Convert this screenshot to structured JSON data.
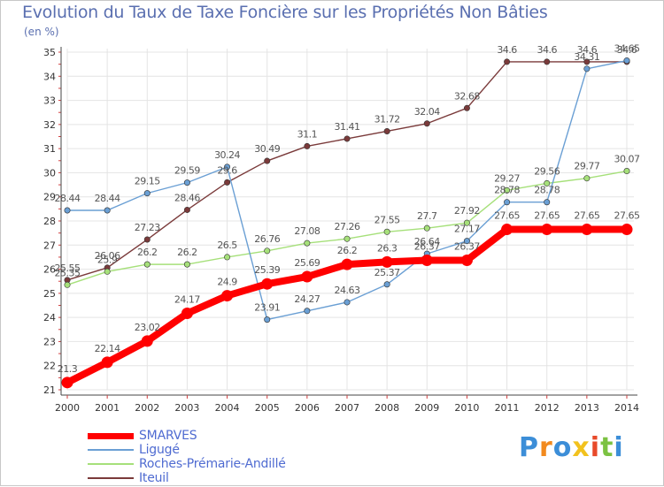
{
  "chart_data": {
    "type": "line",
    "title": "Evolution du Taux de Taxe Foncière sur les Propriétés Non Bâties",
    "ylabel": "(en %)",
    "xlabel": "",
    "ylim": [
      21,
      35
    ],
    "yticks": [
      21,
      22,
      23,
      24,
      25,
      26,
      27,
      28,
      29,
      30,
      31,
      32,
      33,
      34,
      35
    ],
    "categories": [
      "2000",
      "2001",
      "2002",
      "2003",
      "2004",
      "2005",
      "2006",
      "2007",
      "2008",
      "2009",
      "2010",
      "2011",
      "2012",
      "2013",
      "2014"
    ],
    "series": [
      {
        "name": "SMARVES",
        "color": "#ff0000",
        "values": [
          21.3,
          22.14,
          23.02,
          24.17,
          24.9,
          25.39,
          25.69,
          26.2,
          26.3,
          26.37,
          26.37,
          27.65,
          27.65,
          27.65,
          27.65
        ],
        "labels": [
          "21.3",
          "22.14",
          "23.02",
          "24.17",
          "24.9",
          "25.39",
          "25.69",
          "26.2",
          "26.3",
          "26.37",
          "26.37",
          "27.65",
          "27.65",
          "27.65",
          "27.65"
        ]
      },
      {
        "name": "Ligugé",
        "color": "#6a9fd4",
        "values": [
          28.44,
          28.44,
          29.15,
          29.59,
          30.24,
          23.91,
          24.27,
          24.63,
          25.37,
          26.64,
          27.17,
          28.78,
          28.78,
          34.31,
          34.65
        ],
        "labels": [
          "28.44",
          "28.44",
          "29.15",
          "29.59",
          "30.24",
          "23.91",
          "24.27",
          "24.63",
          "25.37",
          "26.64",
          "27.17",
          "28.78",
          "28.78",
          "34.31",
          "34.65"
        ]
      },
      {
        "name": "Roches-Prémarie-Andillé",
        "color": "#a6e07a",
        "values": [
          25.35,
          25.9,
          26.2,
          26.2,
          26.5,
          26.76,
          27.08,
          27.26,
          27.55,
          27.7,
          27.92,
          29.27,
          29.56,
          29.77,
          30.07
        ],
        "labels": [
          "25.35",
          "25.9",
          "26.2",
          "26.2",
          "26.5",
          "26.76",
          "27.08",
          "27.26",
          "27.55",
          "27.7",
          "27.92",
          "29.27",
          "29.56",
          "29.77",
          "30.07"
        ]
      },
      {
        "name": "Iteuil",
        "color": "#7a3a3a",
        "values": [
          25.55,
          26.06,
          27.23,
          28.46,
          29.6,
          30.49,
          31.1,
          31.41,
          31.72,
          32.04,
          32.68,
          34.6,
          34.6,
          34.6,
          34.6
        ],
        "labels": [
          "25.55",
          "26.06",
          "27.23",
          "28.46",
          "29.6",
          "30.49",
          "31.1",
          "31.41",
          "31.72",
          "32.04",
          "32.68",
          "34.6",
          "34.6",
          "34.6",
          "34.6"
        ]
      }
    ],
    "legend": {
      "position": "bottom-left"
    }
  },
  "legend_items": [
    {
      "label": "SMARVES",
      "color": "#ff0000"
    },
    {
      "label": "Ligugé",
      "color": "#6a9fd4"
    },
    {
      "label": "Roches-Prémarie-Andillé",
      "color": "#a6e07a"
    },
    {
      "label": "Iteuil",
      "color": "#7a3a3a"
    }
  ],
  "logo": {
    "letters": [
      "P",
      "r",
      "o",
      "x",
      "i",
      "t",
      "i"
    ],
    "colors": [
      "#3c8ed8",
      "#f28a1e",
      "#3c8ed8",
      "#f2c21e",
      "#e84a2a",
      "#7cc242",
      "#3c8ed8"
    ]
  }
}
